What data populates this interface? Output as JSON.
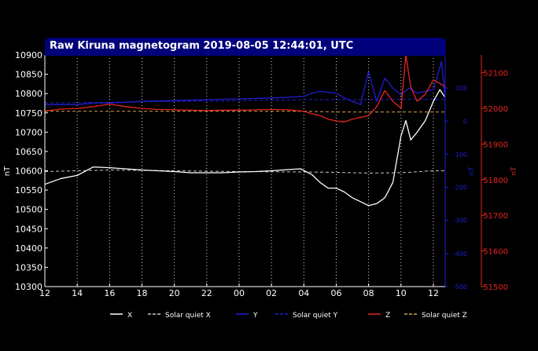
{
  "colors": {
    "background": "#000000",
    "title_bar": "#00007a",
    "x": "#ffffff",
    "y": "#1f1fd6",
    "z": "#e8261e",
    "grid": "#ffffff",
    "right_axis_y": "#1f1fd6",
    "right_axis_z": "#e8261e",
    "quiet_x": "#c8c8c8",
    "quiet_y": "#1f1fd6",
    "quiet_z": "#d9a050"
  },
  "chart_data": {
    "type": "line",
    "title": "Raw Kiruna magnetogram 2019-08-05 12:44:01, UTC",
    "x_range": [
      0,
      24.73
    ],
    "x_ticks": [
      {
        "v": 0,
        "label": "12"
      },
      {
        "v": 2,
        "label": "14"
      },
      {
        "v": 4,
        "label": "16"
      },
      {
        "v": 6,
        "label": "18"
      },
      {
        "v": 8,
        "label": "20"
      },
      {
        "v": 10,
        "label": "22"
      },
      {
        "v": 12,
        "label": "00"
      },
      {
        "v": 14,
        "label": "02"
      },
      {
        "v": 16,
        "label": "04"
      },
      {
        "v": 18,
        "label": "06"
      },
      {
        "v": 20,
        "label": "08"
      },
      {
        "v": 22,
        "label": "10"
      },
      {
        "v": 24,
        "label": "12"
      }
    ],
    "grid": "vertical dotted",
    "left_axis": {
      "label": "nT",
      "range": [
        10300,
        10900
      ],
      "ticks": [
        "10300",
        "10350",
        "10400",
        "10450",
        "10500",
        "10550",
        "10600",
        "10650",
        "10700",
        "10750",
        "10800",
        "10850",
        "10900"
      ]
    },
    "right_axis_y": {
      "label": "nT",
      "range": [
        -500,
        200
      ],
      "ticks": [
        "-500",
        "-400",
        "-300",
        "-200",
        "-100",
        "0",
        "100"
      ]
    },
    "right_axis_z": {
      "label": "nT",
      "range": [
        51500,
        52150
      ],
      "ticks": [
        "51500",
        "51600",
        "51700",
        "51800",
        "51900",
        "52000",
        "52100"
      ]
    },
    "legend": {
      "placement": "bottom",
      "items": [
        {
          "label": "X",
          "style": "solid",
          "color_key": "x"
        },
        {
          "label": "Solar quiet X",
          "style": "dashed",
          "color_key": "quiet_x"
        },
        {
          "label": "Y",
          "style": "solid",
          "color_key": "y"
        },
        {
          "label": "Solar quiet Y",
          "style": "dashed",
          "color_key": "quiet_y"
        },
        {
          "label": "Z",
          "style": "solid",
          "color_key": "z"
        },
        {
          "label": "Solar quiet Z",
          "style": "dashed",
          "color_key": "quiet_z"
        }
      ]
    },
    "series": [
      {
        "name": "X",
        "axis": "left",
        "color_key": "x",
        "style": "solid",
        "points": [
          [
            0,
            10565
          ],
          [
            1,
            10580
          ],
          [
            2,
            10588
          ],
          [
            3,
            10610
          ],
          [
            4,
            10608
          ],
          [
            5,
            10605
          ],
          [
            6,
            10602
          ],
          [
            7,
            10600
          ],
          [
            8,
            10598
          ],
          [
            9,
            10595
          ],
          [
            10,
            10595
          ],
          [
            11,
            10595
          ],
          [
            12,
            10597
          ],
          [
            13,
            10598
          ],
          [
            14,
            10600
          ],
          [
            15,
            10603
          ],
          [
            15.8,
            10605
          ],
          [
            16.5,
            10590
          ],
          [
            17,
            10570
          ],
          [
            17.5,
            10555
          ],
          [
            18,
            10555
          ],
          [
            18.5,
            10545
          ],
          [
            19,
            10530
          ],
          [
            19.5,
            10520
          ],
          [
            20,
            10510
          ],
          [
            20.5,
            10515
          ],
          [
            21,
            10530
          ],
          [
            21.5,
            10570
          ],
          [
            22,
            10690
          ],
          [
            22.3,
            10730
          ],
          [
            22.6,
            10680
          ],
          [
            23,
            10700
          ],
          [
            23.5,
            10730
          ],
          [
            24,
            10780
          ],
          [
            24.4,
            10810
          ],
          [
            24.73,
            10790
          ]
        ]
      },
      {
        "name": "Solar quiet X",
        "axis": "left",
        "color_key": "quiet_x",
        "style": "dashed",
        "points": [
          [
            0,
            10598
          ],
          [
            4,
            10602
          ],
          [
            8,
            10600
          ],
          [
            12,
            10598
          ],
          [
            16,
            10597
          ],
          [
            18,
            10596
          ],
          [
            20,
            10594
          ],
          [
            22,
            10595
          ],
          [
            24,
            10600
          ],
          [
            24.73,
            10600
          ]
        ]
      },
      {
        "name": "Y",
        "axis": "right_y",
        "color_key": "y",
        "style": "solid",
        "points": [
          [
            0,
            50
          ],
          [
            2,
            50
          ],
          [
            3,
            55
          ],
          [
            4,
            55
          ],
          [
            5,
            57
          ],
          [
            6,
            60
          ],
          [
            8,
            62
          ],
          [
            10,
            65
          ],
          [
            12,
            67
          ],
          [
            14,
            70
          ],
          [
            15,
            72
          ],
          [
            16,
            75
          ],
          [
            16.5,
            85
          ],
          [
            17,
            90
          ],
          [
            18,
            85
          ],
          [
            18.5,
            70
          ],
          [
            19,
            60
          ],
          [
            19.5,
            50
          ],
          [
            20,
            150
          ],
          [
            20.5,
            60
          ],
          [
            21,
            130
          ],
          [
            21.5,
            100
          ],
          [
            22,
            80
          ],
          [
            22.5,
            100
          ],
          [
            23,
            85
          ],
          [
            23.5,
            90
          ],
          [
            24,
            95
          ],
          [
            24.5,
            180
          ],
          [
            24.73,
            70
          ]
        ]
      },
      {
        "name": "Solar quiet Y",
        "axis": "right_y",
        "color_key": "quiet_y",
        "style": "dashed",
        "points": [
          [
            0,
            55
          ],
          [
            4,
            57
          ],
          [
            8,
            60
          ],
          [
            12,
            62
          ],
          [
            16,
            65
          ],
          [
            20,
            65
          ],
          [
            24,
            66
          ],
          [
            24.73,
            66
          ]
        ]
      },
      {
        "name": "Z",
        "axis": "right_z",
        "color_key": "z",
        "style": "solid",
        "points": [
          [
            0,
            51993
          ],
          [
            1,
            51998
          ],
          [
            2,
            52000
          ],
          [
            3,
            52005
          ],
          [
            4,
            52012
          ],
          [
            5,
            52005
          ],
          [
            6,
            52000
          ],
          [
            7,
            51997
          ],
          [
            8,
            51996
          ],
          [
            9,
            51995
          ],
          [
            10,
            51994
          ],
          [
            11,
            51995
          ],
          [
            12,
            51995
          ],
          [
            13,
            51996
          ],
          [
            14,
            51997
          ],
          [
            15,
            51996
          ],
          [
            16,
            51992
          ],
          [
            16.5,
            51985
          ],
          [
            17,
            51980
          ],
          [
            17.5,
            51970
          ],
          [
            18,
            51965
          ],
          [
            18.5,
            51962
          ],
          [
            19,
            51970
          ],
          [
            19.5,
            51975
          ],
          [
            20,
            51980
          ],
          [
            20.5,
            52005
          ],
          [
            21,
            52050
          ],
          [
            21.5,
            52020
          ],
          [
            22,
            52000
          ],
          [
            22.3,
            52150
          ],
          [
            22.6,
            52060
          ],
          [
            23,
            52020
          ],
          [
            23.5,
            52040
          ],
          [
            24,
            52080
          ],
          [
            24.4,
            52070
          ],
          [
            24.73,
            52060
          ]
        ]
      },
      {
        "name": "Solar quiet Z",
        "axis": "right_z",
        "color_key": "quiet_z",
        "style": "dashed",
        "points": [
          [
            0,
            51992
          ],
          [
            4,
            51992
          ],
          [
            8,
            51992
          ],
          [
            12,
            51992
          ],
          [
            16,
            51992
          ],
          [
            18,
            51990
          ],
          [
            20,
            51990
          ],
          [
            22,
            51990
          ],
          [
            24,
            51990
          ],
          [
            24.73,
            51990
          ]
        ]
      }
    ]
  }
}
